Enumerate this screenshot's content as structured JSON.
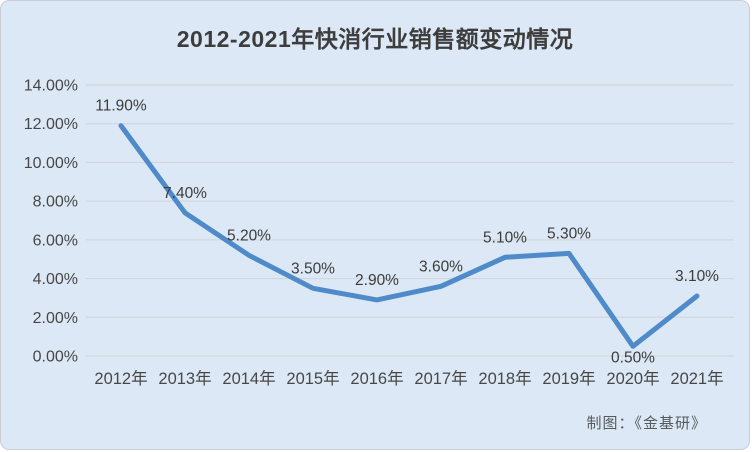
{
  "chart_data": {
    "type": "line",
    "title": "2012-2021年快消行业销售额变动情况",
    "categories": [
      "2012年",
      "2013年",
      "2014年",
      "2015年",
      "2016年",
      "2017年",
      "2018年",
      "2019年",
      "2020年",
      "2021年"
    ],
    "values": [
      11.9,
      7.4,
      5.2,
      3.5,
      2.9,
      3.6,
      5.1,
      5.3,
      0.5,
      3.1
    ],
    "point_labels": [
      "11.90%",
      "7.40%",
      "5.20%",
      "3.50%",
      "2.90%",
      "3.60%",
      "5.10%",
      "5.30%",
      "0.50%",
      "3.10%"
    ],
    "labels_below_indices": [
      8
    ],
    "y_ticks": [
      "0.00%",
      "2.00%",
      "4.00%",
      "6.00%",
      "8.00%",
      "10.00%",
      "12.00%",
      "14.00%"
    ],
    "ylim": [
      0,
      14
    ],
    "y_step": 2,
    "xlabel": "",
    "ylabel": "",
    "grid": true,
    "legend": "none",
    "line_color": "#4e8bc8",
    "gridline_color": "#d3d7db",
    "background_color": "#dce8f5",
    "text_color": "#474747",
    "label_color": "#3c3c3c"
  },
  "footer": {
    "credit": "制图：《金基研》"
  }
}
